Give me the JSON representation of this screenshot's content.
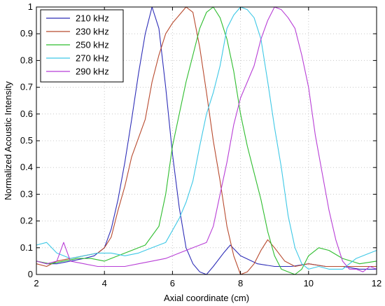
{
  "chart_data": {
    "type": "line",
    "title": "",
    "xlabel": "Axial coordinate (cm)",
    "ylabel": "Normalized Acoustic Intensity",
    "xlim": [
      2,
      12
    ],
    "ylim": [
      0,
      1
    ],
    "xticks": [
      2,
      4,
      6,
      8,
      10,
      12
    ],
    "yticks": [
      0,
      0.1,
      0.2,
      0.3,
      0.4,
      0.5,
      0.6,
      0.7,
      0.8,
      0.9,
      1
    ],
    "grid": true,
    "legend_position": "top-left",
    "series": [
      {
        "name": "210 kHz",
        "color": "#2e2eb8",
        "points": [
          [
            2.0,
            0.05
          ],
          [
            2.3,
            0.04
          ],
          [
            2.6,
            0.04
          ],
          [
            3.0,
            0.05
          ],
          [
            3.4,
            0.06
          ],
          [
            3.7,
            0.07
          ],
          [
            4.0,
            0.1
          ],
          [
            4.2,
            0.17
          ],
          [
            4.4,
            0.28
          ],
          [
            4.6,
            0.42
          ],
          [
            4.8,
            0.58
          ],
          [
            5.0,
            0.75
          ],
          [
            5.2,
            0.9
          ],
          [
            5.4,
            1.0
          ],
          [
            5.6,
            0.92
          ],
          [
            5.8,
            0.7
          ],
          [
            6.0,
            0.45
          ],
          [
            6.2,
            0.25
          ],
          [
            6.4,
            0.1
          ],
          [
            6.6,
            0.04
          ],
          [
            6.8,
            0.01
          ],
          [
            7.0,
            0.0
          ],
          [
            7.2,
            0.03
          ],
          [
            7.5,
            0.08
          ],
          [
            7.7,
            0.11
          ],
          [
            8.0,
            0.07
          ],
          [
            8.5,
            0.04
          ],
          [
            9.0,
            0.03
          ],
          [
            9.5,
            0.03
          ],
          [
            10.0,
            0.04
          ],
          [
            10.5,
            0.03
          ],
          [
            11.0,
            0.03
          ],
          [
            11.5,
            0.02
          ],
          [
            12.0,
            0.02
          ]
        ]
      },
      {
        "name": "230 kHz",
        "color": "#b84a2e",
        "points": [
          [
            2.0,
            0.04
          ],
          [
            2.3,
            0.03
          ],
          [
            2.6,
            0.05
          ],
          [
            3.0,
            0.06
          ],
          [
            3.4,
            0.07
          ],
          [
            3.8,
            0.08
          ],
          [
            4.0,
            0.1
          ],
          [
            4.2,
            0.14
          ],
          [
            4.4,
            0.24
          ],
          [
            4.6,
            0.33
          ],
          [
            4.8,
            0.44
          ],
          [
            5.0,
            0.51
          ],
          [
            5.2,
            0.58
          ],
          [
            5.4,
            0.72
          ],
          [
            5.6,
            0.82
          ],
          [
            5.8,
            0.9
          ],
          [
            6.0,
            0.94
          ],
          [
            6.2,
            0.97
          ],
          [
            6.4,
            1.0
          ],
          [
            6.6,
            0.98
          ],
          [
            6.8,
            0.85
          ],
          [
            7.0,
            0.68
          ],
          [
            7.2,
            0.5
          ],
          [
            7.4,
            0.35
          ],
          [
            7.6,
            0.18
          ],
          [
            7.8,
            0.07
          ],
          [
            8.0,
            0.0
          ],
          [
            8.2,
            0.01
          ],
          [
            8.4,
            0.04
          ],
          [
            8.6,
            0.09
          ],
          [
            8.8,
            0.13
          ],
          [
            9.0,
            0.1
          ],
          [
            9.3,
            0.05
          ],
          [
            9.6,
            0.03
          ],
          [
            10.0,
            0.04
          ],
          [
            10.5,
            0.03
          ],
          [
            11.0,
            0.03
          ],
          [
            11.5,
            0.03
          ],
          [
            12.0,
            0.03
          ]
        ]
      },
      {
        "name": "250 kHz",
        "color": "#2ebd2e",
        "points": [
          [
            2.0,
            0.05
          ],
          [
            2.4,
            0.04
          ],
          [
            2.8,
            0.05
          ],
          [
            3.2,
            0.06
          ],
          [
            3.6,
            0.06
          ],
          [
            4.0,
            0.05
          ],
          [
            4.4,
            0.07
          ],
          [
            4.8,
            0.09
          ],
          [
            5.2,
            0.11
          ],
          [
            5.6,
            0.18
          ],
          [
            5.8,
            0.3
          ],
          [
            6.0,
            0.48
          ],
          [
            6.2,
            0.6
          ],
          [
            6.4,
            0.72
          ],
          [
            6.6,
            0.82
          ],
          [
            6.8,
            0.92
          ],
          [
            7.0,
            0.98
          ],
          [
            7.2,
            1.0
          ],
          [
            7.4,
            0.96
          ],
          [
            7.6,
            0.88
          ],
          [
            7.8,
            0.76
          ],
          [
            8.0,
            0.6
          ],
          [
            8.2,
            0.48
          ],
          [
            8.4,
            0.38
          ],
          [
            8.6,
            0.28
          ],
          [
            8.8,
            0.16
          ],
          [
            9.0,
            0.07
          ],
          [
            9.2,
            0.02
          ],
          [
            9.4,
            0.01
          ],
          [
            9.6,
            0.0
          ],
          [
            9.8,
            0.02
          ],
          [
            10.0,
            0.07
          ],
          [
            10.3,
            0.1
          ],
          [
            10.6,
            0.09
          ],
          [
            11.0,
            0.06
          ],
          [
            11.5,
            0.04
          ],
          [
            12.0,
            0.05
          ]
        ]
      },
      {
        "name": "270 kHz",
        "color": "#3ec8e6",
        "points": [
          [
            2.0,
            0.11
          ],
          [
            2.3,
            0.12
          ],
          [
            2.6,
            0.08
          ],
          [
            3.0,
            0.06
          ],
          [
            3.4,
            0.07
          ],
          [
            3.8,
            0.08
          ],
          [
            4.2,
            0.08
          ],
          [
            4.6,
            0.07
          ],
          [
            5.0,
            0.08
          ],
          [
            5.4,
            0.1
          ],
          [
            5.8,
            0.12
          ],
          [
            6.2,
            0.21
          ],
          [
            6.4,
            0.27
          ],
          [
            6.6,
            0.35
          ],
          [
            6.8,
            0.48
          ],
          [
            7.0,
            0.6
          ],
          [
            7.2,
            0.68
          ],
          [
            7.4,
            0.78
          ],
          [
            7.6,
            0.92
          ],
          [
            7.8,
            0.97
          ],
          [
            8.0,
            1.0
          ],
          [
            8.2,
            0.99
          ],
          [
            8.4,
            0.96
          ],
          [
            8.6,
            0.88
          ],
          [
            8.8,
            0.72
          ],
          [
            9.0,
            0.55
          ],
          [
            9.2,
            0.4
          ],
          [
            9.4,
            0.22
          ],
          [
            9.6,
            0.1
          ],
          [
            9.8,
            0.04
          ],
          [
            10.0,
            0.02
          ],
          [
            10.3,
            0.03
          ],
          [
            10.6,
            0.02
          ],
          [
            11.0,
            0.02
          ],
          [
            11.4,
            0.06
          ],
          [
            11.8,
            0.08
          ],
          [
            12.0,
            0.09
          ]
        ]
      },
      {
        "name": "290 kHz",
        "color": "#b83ed6",
        "points": [
          [
            2.0,
            0.05
          ],
          [
            2.3,
            0.04
          ],
          [
            2.6,
            0.05
          ],
          [
            2.8,
            0.12
          ],
          [
            3.0,
            0.05
          ],
          [
            3.4,
            0.04
          ],
          [
            3.8,
            0.03
          ],
          [
            4.2,
            0.03
          ],
          [
            4.6,
            0.03
          ],
          [
            5.0,
            0.04
          ],
          [
            5.4,
            0.05
          ],
          [
            5.8,
            0.06
          ],
          [
            6.2,
            0.08
          ],
          [
            6.6,
            0.1
          ],
          [
            7.0,
            0.12
          ],
          [
            7.2,
            0.18
          ],
          [
            7.4,
            0.3
          ],
          [
            7.6,
            0.42
          ],
          [
            7.8,
            0.56
          ],
          [
            8.0,
            0.66
          ],
          [
            8.2,
            0.72
          ],
          [
            8.4,
            0.78
          ],
          [
            8.6,
            0.88
          ],
          [
            8.8,
            0.95
          ],
          [
            9.0,
            1.0
          ],
          [
            9.2,
            0.99
          ],
          [
            9.4,
            0.96
          ],
          [
            9.6,
            0.92
          ],
          [
            9.8,
            0.82
          ],
          [
            10.0,
            0.7
          ],
          [
            10.2,
            0.52
          ],
          [
            10.4,
            0.38
          ],
          [
            10.6,
            0.24
          ],
          [
            10.8,
            0.13
          ],
          [
            11.0,
            0.05
          ],
          [
            11.2,
            0.02
          ],
          [
            11.4,
            0.02
          ],
          [
            11.6,
            0.01
          ],
          [
            11.8,
            0.03
          ],
          [
            12.0,
            0.02
          ]
        ]
      }
    ]
  }
}
